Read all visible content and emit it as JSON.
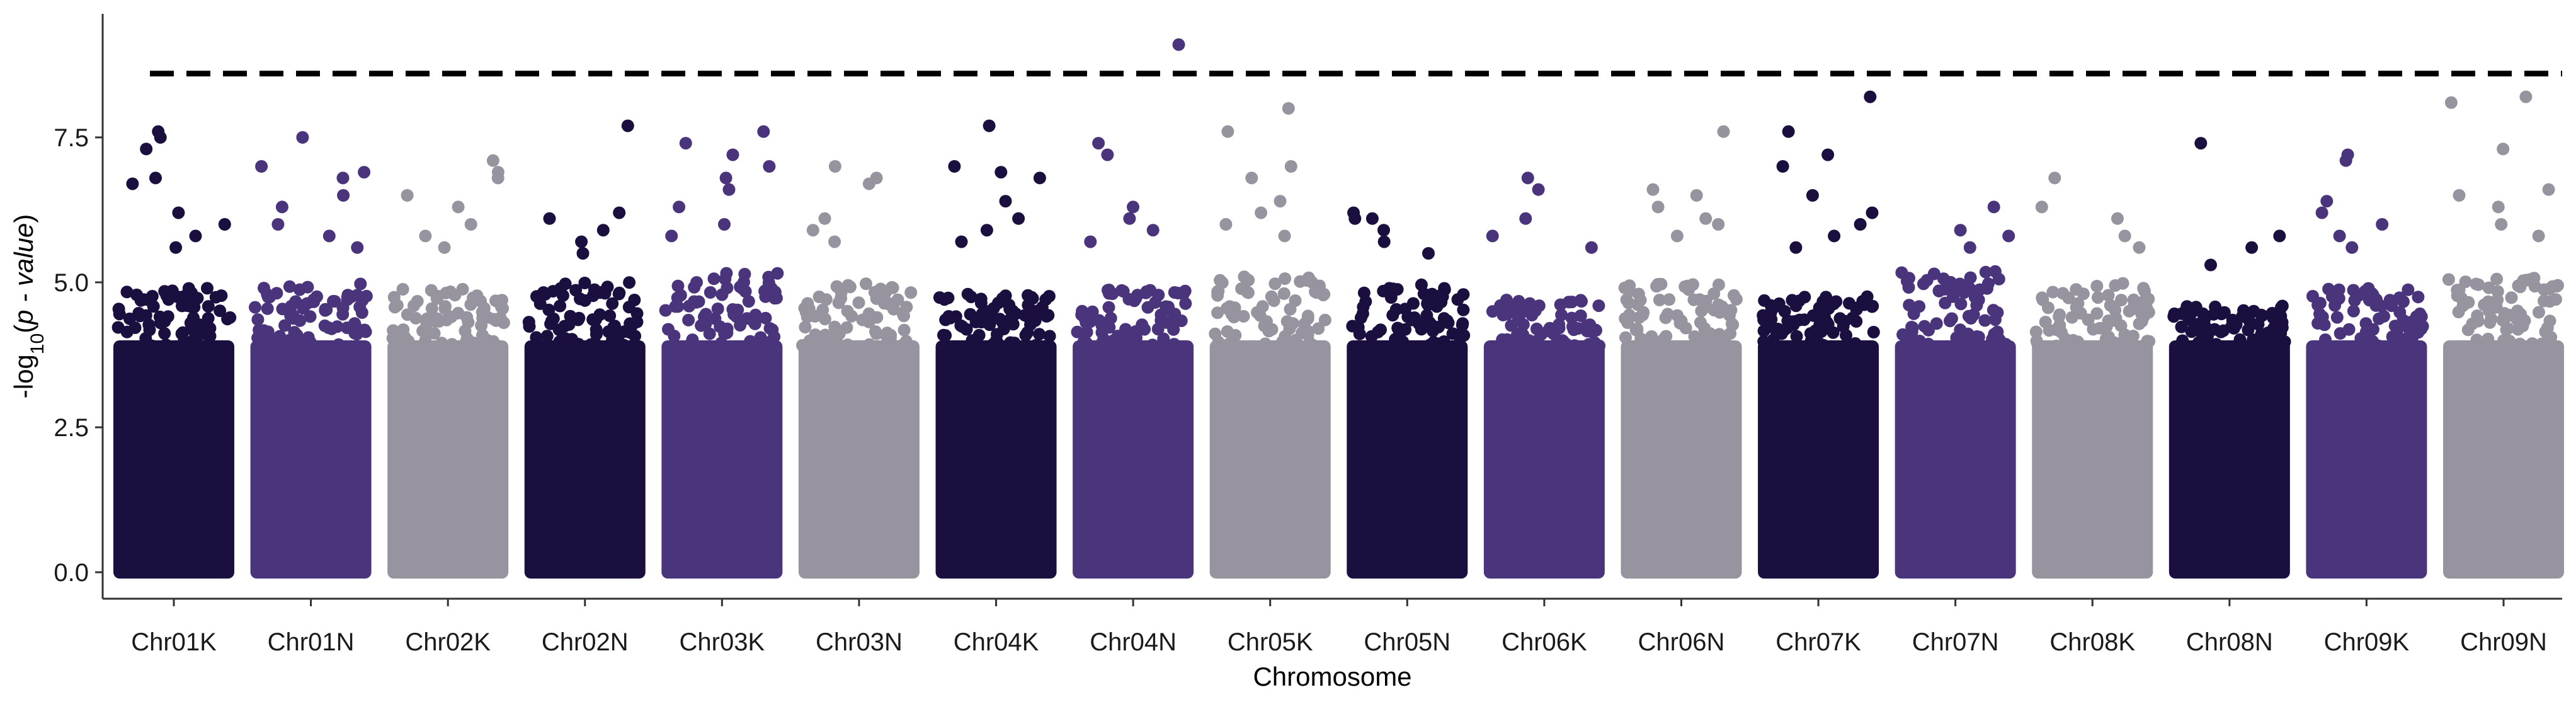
{
  "chart_data": {
    "type": "scatter",
    "subtype": "manhattan",
    "title": "",
    "xlabel": "Chromosome",
    "ylabel": "-log10(p - value)",
    "ylim": [
      0,
      9.3
    ],
    "yticks": [
      "0.0",
      "2.5",
      "5.0",
      "7.5"
    ],
    "ytick_values": [
      0,
      2.5,
      5.0,
      7.5
    ],
    "threshold": 8.6,
    "threshold_style": "dashed",
    "grid": false,
    "legend": "none",
    "colors": [
      "#1b0f40",
      "#4a347c",
      "#97939f"
    ],
    "categories": [
      "Chr01K",
      "Chr01N",
      "Chr02K",
      "Chr02N",
      "Chr03K",
      "Chr03N",
      "Chr04K",
      "Chr04N",
      "Chr05K",
      "Chr05N",
      "Chr06K",
      "Chr06N",
      "Chr07K",
      "Chr07N",
      "Chr08K",
      "Chr08N",
      "Chr09K",
      "Chr09N"
    ],
    "series": [
      {
        "chromosome": "Chr01K",
        "color": "#1b0f40",
        "bulk_max": 4.9,
        "peaks": [
          7.6,
          7.5,
          7.3,
          6.8,
          6.7,
          6.2,
          6.0,
          5.8,
          5.6
        ]
      },
      {
        "chromosome": "Chr01N",
        "color": "#4a347c",
        "bulk_max": 5.0,
        "peaks": [
          7.5,
          7.0,
          6.9,
          6.8,
          6.5,
          6.3,
          6.0,
          5.8,
          5.6
        ]
      },
      {
        "chromosome": "Chr02K",
        "color": "#97939f",
        "bulk_max": 4.9,
        "peaks": [
          7.1,
          6.9,
          6.8,
          6.5,
          6.3,
          6.0,
          5.8,
          5.6
        ]
      },
      {
        "chromosome": "Chr02N",
        "color": "#1b0f40",
        "bulk_max": 5.0,
        "peaks": [
          7.7,
          6.2,
          6.1,
          5.9,
          5.7,
          5.5
        ]
      },
      {
        "chromosome": "Chr03K",
        "color": "#4a347c",
        "bulk_max": 5.2,
        "peaks": [
          7.6,
          7.4,
          7.2,
          7.0,
          6.8,
          6.6,
          6.3,
          6.0,
          5.8
        ]
      },
      {
        "chromosome": "Chr03N",
        "color": "#97939f",
        "bulk_max": 5.0,
        "peaks": [
          7.0,
          6.8,
          6.7,
          6.1,
          5.9,
          5.7
        ]
      },
      {
        "chromosome": "Chr04K",
        "color": "#1b0f40",
        "bulk_max": 4.8,
        "peaks": [
          7.7,
          7.0,
          6.9,
          6.8,
          6.4,
          6.1,
          5.9,
          5.7
        ]
      },
      {
        "chromosome": "Chr04N",
        "color": "#4a347c",
        "bulk_max": 4.9,
        "peaks": [
          9.1,
          7.4,
          7.2,
          6.3,
          6.1,
          5.9,
          5.7
        ]
      },
      {
        "chromosome": "Chr05K",
        "color": "#97939f",
        "bulk_max": 5.1,
        "peaks": [
          8.0,
          7.6,
          7.0,
          6.8,
          6.4,
          6.2,
          6.0,
          5.8
        ]
      },
      {
        "chromosome": "Chr05N",
        "color": "#1b0f40",
        "bulk_max": 5.0,
        "peaks": [
          6.2,
          6.1,
          6.1,
          5.9,
          5.7,
          5.5
        ]
      },
      {
        "chromosome": "Chr06K",
        "color": "#4a347c",
        "bulk_max": 4.7,
        "peaks": [
          6.8,
          6.6,
          6.1,
          5.8,
          5.6
        ]
      },
      {
        "chromosome": "Chr06N",
        "color": "#97939f",
        "bulk_max": 5.0,
        "peaks": [
          7.6,
          6.6,
          6.5,
          6.3,
          6.1,
          6.0,
          5.8
        ]
      },
      {
        "chromosome": "Chr07K",
        "color": "#1b0f40",
        "bulk_max": 4.8,
        "peaks": [
          8.2,
          7.6,
          7.2,
          7.0,
          6.5,
          6.2,
          6.0,
          5.8,
          5.6
        ]
      },
      {
        "chromosome": "Chr07N",
        "color": "#4a347c",
        "bulk_max": 5.2,
        "peaks": [
          6.3,
          5.9,
          5.8,
          5.6
        ]
      },
      {
        "chromosome": "Chr08K",
        "color": "#97939f",
        "bulk_max": 5.0,
        "peaks": [
          6.8,
          6.3,
          6.1,
          5.8,
          5.6
        ]
      },
      {
        "chromosome": "Chr08N",
        "color": "#1b0f40",
        "bulk_max": 4.6,
        "peaks": [
          7.4,
          5.8,
          5.6,
          5.3
        ]
      },
      {
        "chromosome": "Chr09K",
        "color": "#4a347c",
        "bulk_max": 4.9,
        "peaks": [
          7.2,
          7.1,
          6.4,
          6.2,
          6.0,
          5.8,
          5.6
        ]
      },
      {
        "chromosome": "Chr09N",
        "color": "#97939f",
        "bulk_max": 5.1,
        "peaks": [
          8.2,
          8.1,
          7.3,
          6.6,
          6.5,
          6.3,
          6.0,
          5.8
        ]
      }
    ]
  }
}
